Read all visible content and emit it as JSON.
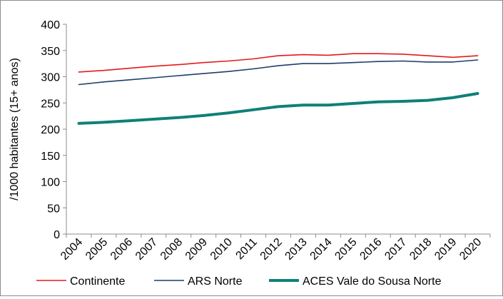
{
  "chart_data": {
    "type": "line",
    "title": "",
    "xlabel": "",
    "ylabel": "/1000 habitantes (15+ anos)",
    "ylim": [
      0,
      400
    ],
    "yticks": [
      0,
      50,
      100,
      150,
      200,
      250,
      300,
      350,
      400
    ],
    "grid": false,
    "legend_position": "bottom",
    "categories": [
      "2004",
      "2005",
      "2006",
      "2007",
      "2008",
      "2009",
      "2010",
      "2011",
      "2012",
      "2013",
      "2014",
      "2015",
      "2016",
      "2017",
      "2018",
      "2019",
      "2020"
    ],
    "series": [
      {
        "name": "Continente",
        "color": "#e41a1c",
        "line_width": "thin",
        "values": [
          309,
          312,
          316,
          320,
          323,
          327,
          330,
          334,
          340,
          342,
          341,
          344,
          344,
          343,
          340,
          337,
          340
        ]
      },
      {
        "name": "ARS Norte",
        "color": "#1f3d6b",
        "line_width": "thin",
        "values": [
          285,
          290,
          294,
          298,
          302,
          306,
          310,
          315,
          321,
          325,
          325,
          327,
          329,
          330,
          328,
          328,
          332
        ]
      },
      {
        "name": "ACES Vale do Sousa Norte",
        "color": "#0f8077",
        "line_width": "thick",
        "values": [
          211,
          213,
          216,
          219,
          222,
          226,
          231,
          237,
          243,
          246,
          246,
          249,
          252,
          253,
          255,
          260,
          268
        ]
      }
    ]
  }
}
